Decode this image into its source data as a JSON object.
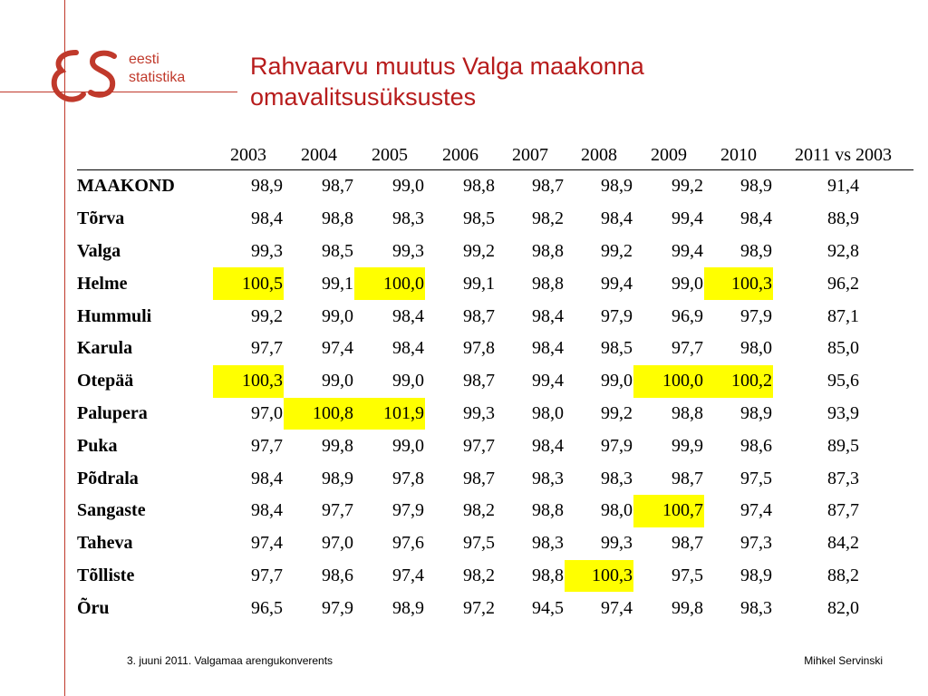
{
  "logo": {
    "text_line1": "eesti",
    "text_line2": "statistika"
  },
  "title": {
    "line1": "Rahvaarvu muutus Valga maakonna",
    "line2": "omavalitsusüksustes"
  },
  "table": {
    "columns": [
      "2003",
      "2004",
      "2005",
      "2006",
      "2007",
      "2008",
      "2009",
      "2010",
      "2011 vs 2003"
    ],
    "rows": [
      {
        "name": "MAAKOND",
        "values": [
          "98,9",
          "98,7",
          "99,0",
          "98,8",
          "98,7",
          "98,9",
          "99,2",
          "98,9",
          "91,4"
        ],
        "highlight": []
      },
      {
        "name": "Tõrva",
        "values": [
          "98,4",
          "98,8",
          "98,3",
          "98,5",
          "98,2",
          "98,4",
          "99,4",
          "98,4",
          "88,9"
        ],
        "highlight": []
      },
      {
        "name": "Valga",
        "values": [
          "99,3",
          "98,5",
          "99,3",
          "99,2",
          "98,8",
          "99,2",
          "99,4",
          "98,9",
          "92,8"
        ],
        "highlight": []
      },
      {
        "name": "Helme",
        "values": [
          "100,5",
          "99,1",
          "100,0",
          "99,1",
          "98,8",
          "99,4",
          "99,0",
          "100,3",
          "96,2"
        ],
        "highlight": [
          0,
          2,
          7
        ]
      },
      {
        "name": "Hummuli",
        "values": [
          "99,2",
          "99,0",
          "98,4",
          "98,7",
          "98,4",
          "97,9",
          "96,9",
          "97,9",
          "87,1"
        ],
        "highlight": []
      },
      {
        "name": "Karula",
        "values": [
          "97,7",
          "97,4",
          "98,4",
          "97,8",
          "98,4",
          "98,5",
          "97,7",
          "98,0",
          "85,0"
        ],
        "highlight": []
      },
      {
        "name": "Otepää",
        "values": [
          "100,3",
          "99,0",
          "99,0",
          "98,7",
          "99,4",
          "99,0",
          "100,0",
          "100,2",
          "95,6"
        ],
        "highlight": [
          0,
          6,
          7
        ]
      },
      {
        "name": "Palupera",
        "values": [
          "97,0",
          "100,8",
          "101,9",
          "99,3",
          "98,0",
          "99,2",
          "98,8",
          "98,9",
          "93,9"
        ],
        "highlight": [
          1,
          2
        ]
      },
      {
        "name": "Puka",
        "values": [
          "97,7",
          "99,8",
          "99,0",
          "97,7",
          "98,4",
          "97,9",
          "99,9",
          "98,6",
          "89,5"
        ],
        "highlight": []
      },
      {
        "name": "Põdrala",
        "values": [
          "98,4",
          "98,9",
          "97,8",
          "98,7",
          "98,3",
          "98,3",
          "98,7",
          "97,5",
          "87,3"
        ],
        "highlight": []
      },
      {
        "name": "Sangaste",
        "values": [
          "98,4",
          "97,7",
          "97,9",
          "98,2",
          "98,8",
          "98,0",
          "100,7",
          "97,4",
          "87,7"
        ],
        "highlight": [
          6
        ]
      },
      {
        "name": "Taheva",
        "values": [
          "97,4",
          "97,0",
          "97,6",
          "97,5",
          "98,3",
          "99,3",
          "98,7",
          "97,3",
          "84,2"
        ],
        "highlight": []
      },
      {
        "name": "Tõlliste",
        "values": [
          "97,7",
          "98,6",
          "97,4",
          "98,2",
          "98,8",
          "100,3",
          "97,5",
          "98,9",
          "88,2"
        ],
        "highlight": [
          5
        ]
      },
      {
        "name": "Õru",
        "values": [
          "96,5",
          "97,9",
          "98,9",
          "97,2",
          "94,5",
          "97,4",
          "99,8",
          "98,3",
          "82,0"
        ],
        "highlight": []
      }
    ]
  },
  "footer": {
    "left": "3. juuni 2011. Valgamaa arengukonverents",
    "right": "Mihkel Servinski"
  },
  "colors": {
    "accent": "#b71c1c",
    "highlight": "#ffff00",
    "rule": "#c0392b"
  }
}
